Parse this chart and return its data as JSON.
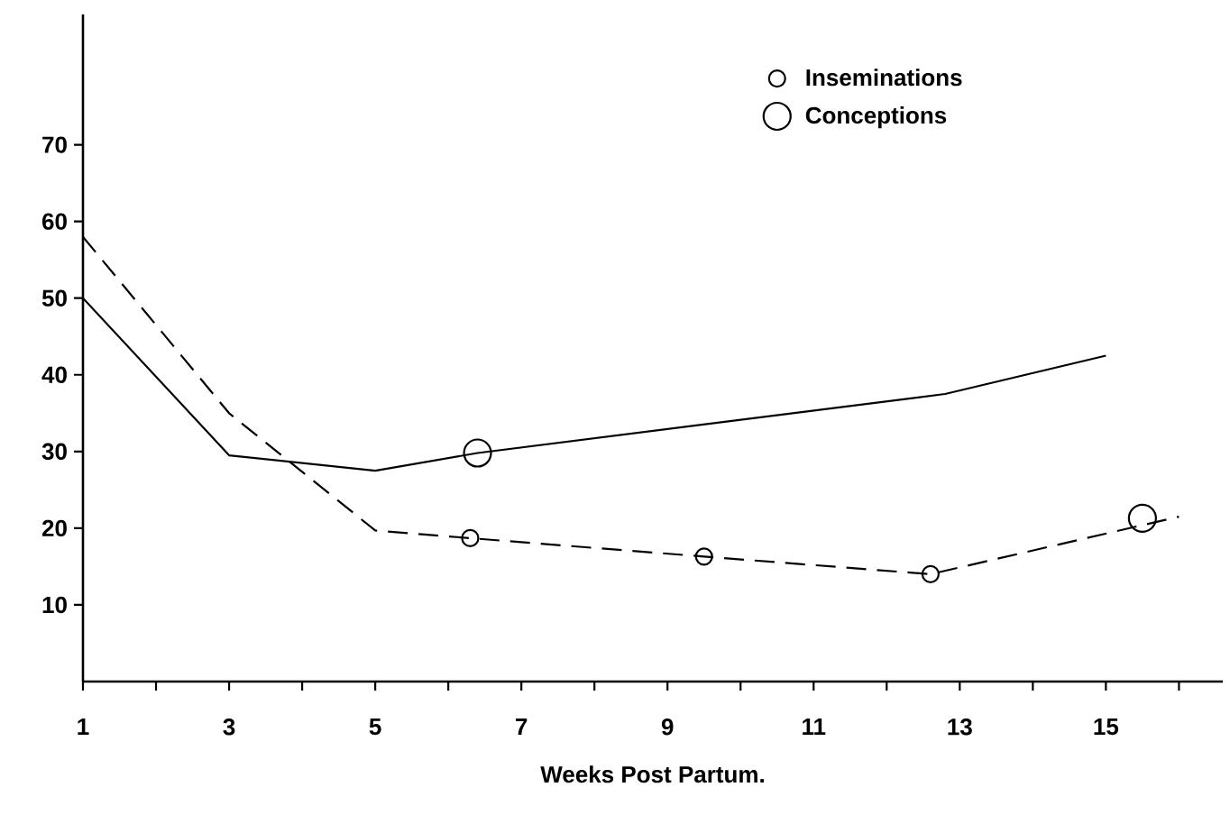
{
  "chart_data": {
    "type": "line",
    "xlabel": "Weeks Post Partum.",
    "xlim": [
      1,
      16.6
    ],
    "ylim": [
      0,
      87
    ],
    "xticks": [
      1,
      {
        "value": 2,
        "label": null
      },
      3,
      {
        "value": 4,
        "label": null
      },
      5,
      {
        "value": 6,
        "label": null
      },
      7,
      {
        "value": 8,
        "label": null
      },
      9,
      {
        "value": 10,
        "label": null
      },
      11,
      {
        "value": 12,
        "label": null
      },
      13,
      {
        "value": 14,
        "label": null
      },
      15,
      {
        "value": 16,
        "label": null
      }
    ],
    "yticks": [
      10,
      20,
      30,
      40,
      50,
      60,
      70
    ],
    "grid": false,
    "legend": "top right",
    "series": [
      {
        "color": "#000000",
        "line_style": "solid",
        "marker": "none",
        "x": [
          1,
          3,
          5,
          6.4,
          12.8,
          15
        ],
        "values": [
          50,
          29.5,
          27.5,
          29.8,
          37.5,
          42.5
        ]
      },
      {
        "color": "#000000",
        "line_style": "dashed",
        "marker": "none",
        "x": [
          1,
          3,
          5,
          6.3,
          9.5,
          12.6,
          16
        ],
        "values": [
          58,
          35,
          19.7,
          18.7,
          16.3,
          14,
          21.5
        ]
      },
      {
        "type": "scatter",
        "name": "Inseminations",
        "color": "#000000",
        "marker": "circle",
        "x": [
          6.3,
          9.5,
          12.6
        ],
        "values": [
          18.7,
          16.3,
          14
        ]
      },
      {
        "type": "scatter",
        "name": "Conceptions",
        "color": "#000000",
        "marker": "circle",
        "x": [
          6.4,
          15.5
        ],
        "values": [
          29.8,
          21.3
        ]
      }
    ]
  }
}
